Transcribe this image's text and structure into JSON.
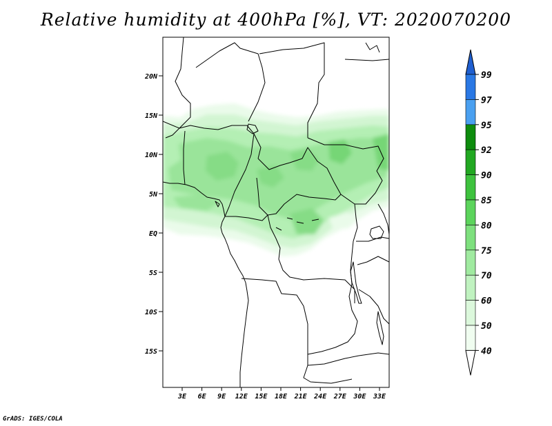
{
  "title": "Relative humidity at 400hPa [%], VT: 2020070200",
  "credit": "GrADS: IGES/COLA",
  "map": {
    "lat_ticks": [
      "20N",
      "15N",
      "10N",
      "5N",
      "EQ",
      "5S",
      "10S",
      "15S"
    ],
    "lon_ticks": [
      "3E",
      "6E",
      "9E",
      "12E",
      "15E",
      "18E",
      "21E",
      "24E",
      "27E",
      "30E",
      "33E"
    ]
  },
  "colorbar": {
    "levels": [
      "99",
      "97",
      "95",
      "92",
      "90",
      "85",
      "80",
      "75",
      "70",
      "60",
      "50",
      "40"
    ],
    "colors": [
      "#1f5fd0",
      "#2a78e4",
      "#4aa0f0",
      "#0e8c0e",
      "#22a822",
      "#3ec23e",
      "#5cd45c",
      "#7ee07e",
      "#a0eaa0",
      "#c0f2c0",
      "#dcf8dc",
      "#f0fdf0",
      "#ffffff"
    ]
  },
  "chart_data": {
    "type": "heatmap",
    "title": "Relative humidity at 400hPa [%], VT: 2020070200",
    "variable": "Relative humidity at 400hPa",
    "units": "%",
    "valid_time": "2020070200",
    "region": "Central Africa",
    "contour_levels": [
      40,
      50,
      60,
      70,
      75,
      80,
      85,
      90,
      92,
      95,
      97,
      99
    ],
    "lat_ticks": [
      "20N",
      "15N",
      "10N",
      "5N",
      "EQ",
      "5S",
      "10S",
      "15S"
    ],
    "lon_ticks": [
      "3E",
      "6E",
      "9E",
      "12E",
      "15E",
      "18E",
      "21E",
      "24E",
      "27E",
      "30E",
      "33E"
    ],
    "x_range": [
      0,
      34
    ],
    "y_range": [
      -20,
      24.5
    ]
  }
}
